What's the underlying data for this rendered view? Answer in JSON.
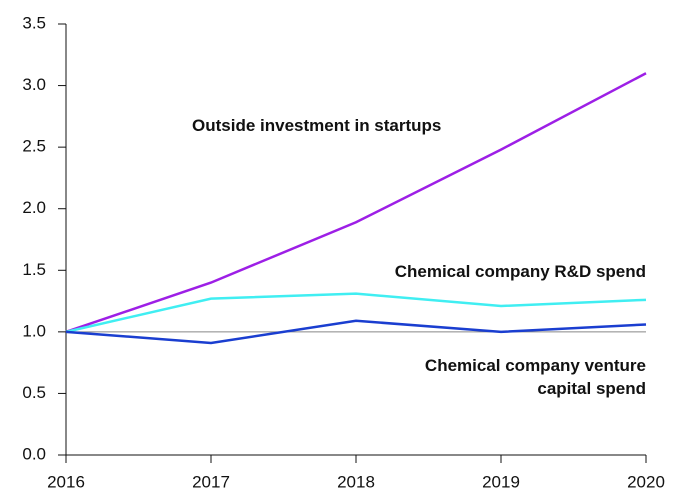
{
  "chart_data": {
    "type": "line",
    "x": [
      2016,
      2017,
      2018,
      2019,
      2020
    ],
    "xlim": [
      2016,
      2020
    ],
    "xticks": [
      2016,
      2017,
      2018,
      2019,
      2020
    ],
    "ylim": [
      0,
      3.5
    ],
    "yticks": [
      {
        "value": 0,
        "label": "0.0"
      },
      0.5,
      {
        "value": 1,
        "label": "1.0"
      },
      1.5,
      {
        "value": 2,
        "label": "2.0"
      },
      2.5,
      {
        "value": 3,
        "label": "3.0"
      },
      3.5
    ],
    "hline": 1,
    "series": [
      {
        "name": "Outside investment in startups",
        "color": "#9d1fe6",
        "values": [
          1.0,
          1.4,
          1.89,
          2.48,
          3.1
        ]
      },
      {
        "name": "Chemical company R&D spend",
        "color": "#40eef2",
        "values": [
          1.0,
          1.27,
          1.31,
          1.21,
          1.26
        ]
      },
      {
        "name": "Chemical company venture capital spend",
        "color": "#1a3ed0",
        "values": [
          1.0,
          0.91,
          1.09,
          1.0,
          1.06
        ]
      }
    ]
  }
}
